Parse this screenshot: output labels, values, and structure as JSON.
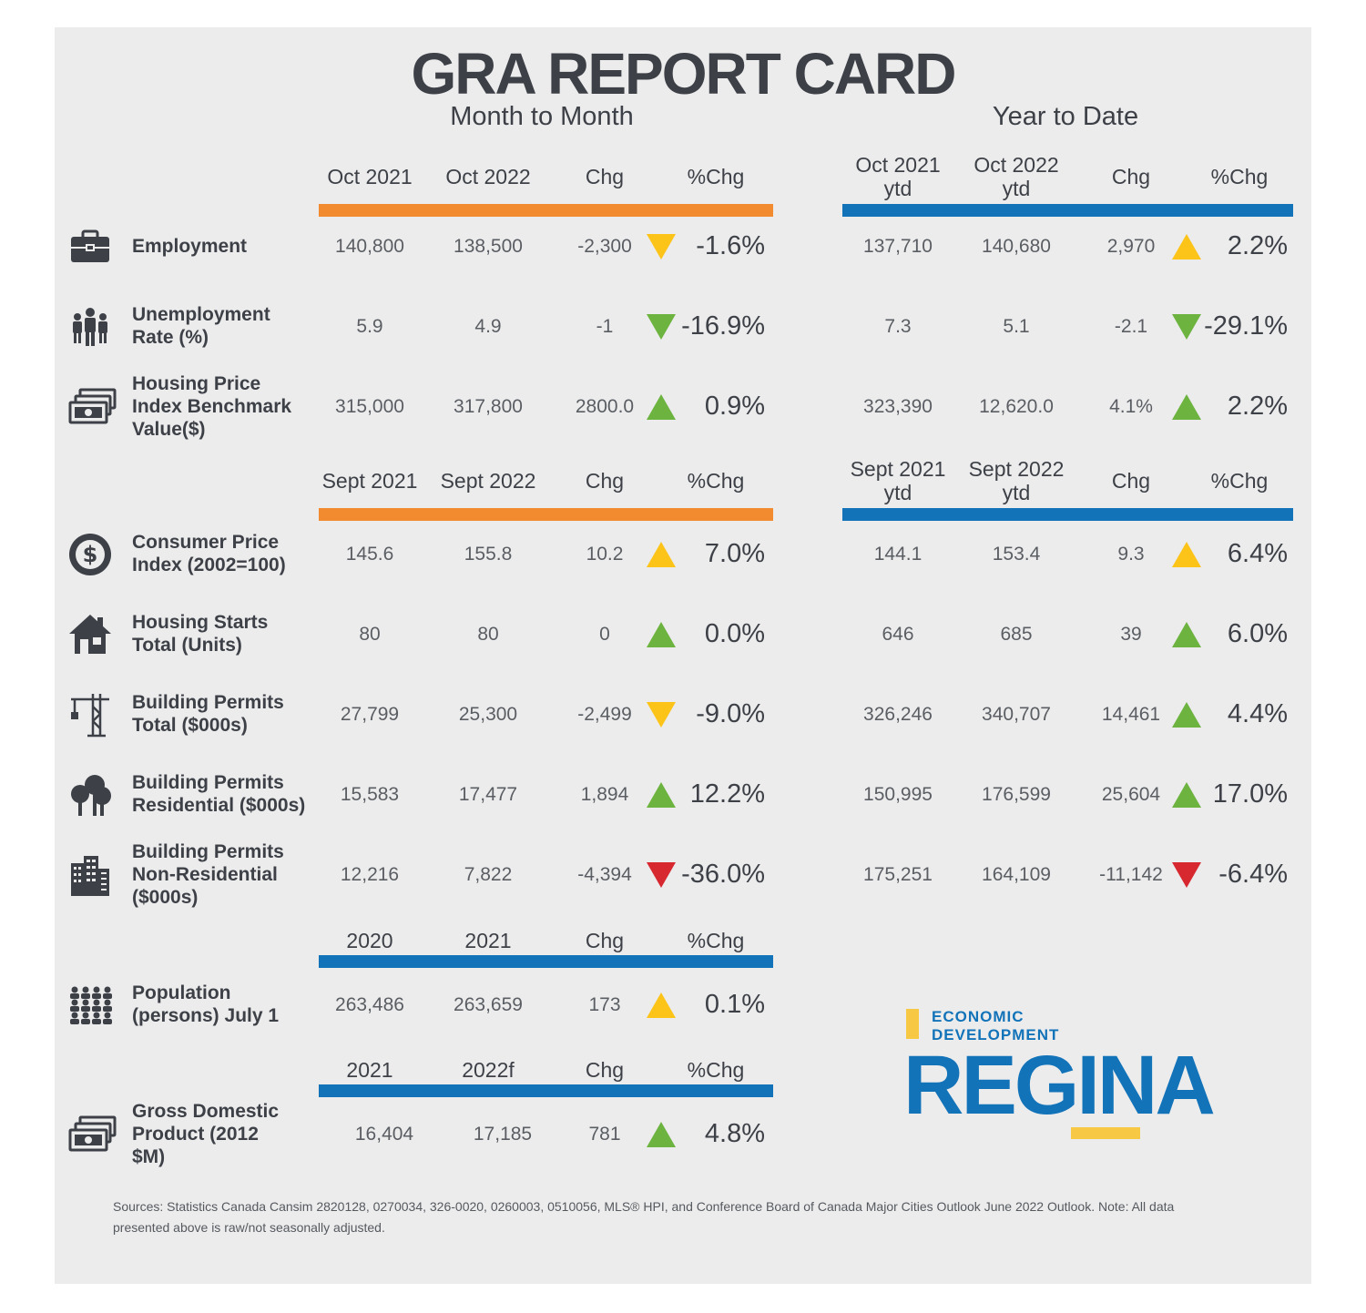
{
  "title": "GRA REPORT CARD",
  "month_heading": "Month to Month",
  "ytd_heading": "Year to Date",
  "colors": {
    "orange": "#f28a30",
    "blue": "#1273b9",
    "yellow": "#fcc419",
    "green": "#6cb33f",
    "red": "#d7282f"
  },
  "sections": [
    {
      "id": "oct",
      "mm_headers": [
        "Oct 2021",
        "Oct 2022",
        "Chg",
        "%Chg"
      ],
      "ytd_headers": [
        [
          "Oct 2021",
          "ytd"
        ],
        [
          "Oct 2022",
          "ytd"
        ],
        [
          "Chg"
        ],
        [
          "%Chg"
        ]
      ],
      "rows": [
        {
          "icon": "briefcase-icon",
          "label": [
            "Employment"
          ],
          "mm": [
            "140,800",
            "138,500",
            "-2,300",
            "-1.6%"
          ],
          "mm_dir": "down",
          "mm_color": "yellow",
          "ytd": [
            "137,710",
            "140,680",
            "2,970",
            "2.2%"
          ],
          "ytd_dir": "up",
          "ytd_color": "yellow"
        },
        {
          "icon": "people-group-icon",
          "label": [
            "Unemployment",
            "Rate (%)"
          ],
          "mm": [
            "5.9",
            "4.9",
            "-1",
            "-16.9%"
          ],
          "mm_dir": "down",
          "mm_color": "green",
          "ytd": [
            "7.3",
            "5.1",
            "-2.1",
            "-29.1%"
          ],
          "ytd_dir": "down",
          "ytd_color": "green"
        },
        {
          "icon": "money-stack-icon",
          "label": [
            "Housing Price",
            "Index Benchmark",
            "Value($)"
          ],
          "mm": [
            "315,000",
            "317,800",
            "2800.0",
            "0.9%"
          ],
          "mm_dir": "up",
          "mm_color": "green",
          "ytd": [
            "323,390",
            "12,620.0",
            "4.1%",
            "2.2%"
          ],
          "ytd_dir": "up",
          "ytd_color": "green"
        }
      ]
    },
    {
      "id": "sept",
      "mm_headers": [
        "Sept 2021",
        "Sept 2022",
        "Chg",
        "%Chg"
      ],
      "ytd_headers": [
        [
          "Sept 2021",
          "ytd"
        ],
        [
          "Sept 2022",
          "ytd"
        ],
        [
          "Chg"
        ],
        [
          "%Chg"
        ]
      ],
      "rows": [
        {
          "icon": "dollar-coin-icon",
          "label": [
            "Consumer Price",
            "Index (2002=100)"
          ],
          "mm": [
            "145.6",
            "155.8",
            "10.2",
            "7.0%"
          ],
          "mm_dir": "up",
          "mm_color": "yellow",
          "ytd": [
            "144.1",
            "153.4",
            "9.3",
            "6.4%"
          ],
          "ytd_dir": "up",
          "ytd_color": "yellow"
        },
        {
          "icon": "house-icon",
          "label": [
            "Housing Starts",
            "Total (Units)"
          ],
          "mm": [
            "80",
            "80",
            "0",
            "0.0%"
          ],
          "mm_dir": "up",
          "mm_color": "green",
          "ytd": [
            "646",
            "685",
            "39",
            "6.0%"
          ],
          "ytd_dir": "up",
          "ytd_color": "green"
        },
        {
          "icon": "crane-icon",
          "label": [
            "Building Permits",
            "Total ($000s)"
          ],
          "mm": [
            "27,799",
            "25,300",
            "-2,499",
            "-9.0%"
          ],
          "mm_dir": "down",
          "mm_color": "yellow",
          "ytd": [
            "326,246",
            "340,707",
            "14,461",
            "4.4%"
          ],
          "ytd_dir": "up",
          "ytd_color": "green"
        },
        {
          "icon": "trees-icon",
          "label": [
            "Building Permits",
            "Residential ($000s)"
          ],
          "mm": [
            "15,583",
            "17,477",
            "1,894",
            "12.2%"
          ],
          "mm_dir": "up",
          "mm_color": "green",
          "ytd": [
            "150,995",
            "176,599",
            "25,604",
            "17.0%"
          ],
          "ytd_dir": "up",
          "ytd_color": "green"
        },
        {
          "icon": "office-buildings-icon",
          "label": [
            "Building Permits",
            "Non-Residential",
            "($000s)"
          ],
          "mm": [
            "12,216",
            "7,822",
            "-4,394",
            "-36.0%"
          ],
          "mm_dir": "down",
          "mm_color": "red",
          "ytd": [
            "175,251",
            "164,109",
            "-11,142",
            "-6.4%"
          ],
          "ytd_dir": "down",
          "ytd_color": "red"
        }
      ]
    }
  ],
  "population": {
    "headers": [
      "2020",
      "2021",
      "Chg",
      "%Chg"
    ],
    "icon": "crowd-icon",
    "label": [
      "Population",
      "(persons) July 1"
    ],
    "values": [
      "263,486",
      "263,659",
      "173",
      "0.1%"
    ],
    "dir": "up",
    "color": "yellow"
  },
  "gdp": {
    "headers": [
      "2021",
      "2022f",
      "Chg",
      "%Chg"
    ],
    "icon": "money-stack-icon",
    "label": [
      "Gross Domestic",
      "Product (2012",
      "$M)"
    ],
    "values": [
      "16,404",
      "17,185",
      "781",
      "4.8%"
    ],
    "dir": "up",
    "color": "green"
  },
  "brand": {
    "line1": "ECONOMIC",
    "line2": "DEVELOPMENT",
    "name": "REGINA"
  },
  "sources": [
    "Sources: Statistics Canada Cansim 2820128, 0270034, 326-0020, 0260003, 0510056, MLS® HPI, and Conference Board of Canada Major Cities Outlook June 2022 Outlook. Note: All data",
    "presented above is raw/not seasonally adjusted."
  ]
}
